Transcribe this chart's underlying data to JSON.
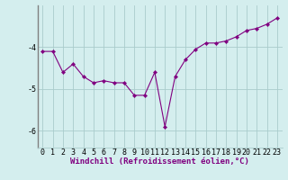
{
  "x": [
    0,
    1,
    2,
    3,
    4,
    5,
    6,
    7,
    8,
    9,
    10,
    11,
    12,
    13,
    14,
    15,
    16,
    17,
    18,
    19,
    20,
    21,
    22,
    23
  ],
  "y": [
    -4.1,
    -4.1,
    -4.6,
    -4.4,
    -4.7,
    -4.85,
    -4.8,
    -4.85,
    -4.85,
    -5.15,
    -5.15,
    -4.6,
    -5.9,
    -4.7,
    -4.3,
    -4.05,
    -3.9,
    -3.9,
    -3.85,
    -3.75,
    -3.6,
    -3.55,
    -3.45,
    -3.3
  ],
  "line_color": "#800080",
  "marker": "D",
  "marker_size": 2.2,
  "bg_color": "#d4eeee",
  "grid_color": "#aacccc",
  "xlabel": "Windchill (Refroidissement éolien,°C)",
  "xlabel_fontsize": 6.5,
  "tick_fontsize": 6.0,
  "ylim": [
    -6.4,
    -3.0
  ],
  "xlim": [
    -0.5,
    23.5
  ],
  "yticks": [
    -6,
    -5,
    -4
  ],
  "xticks": [
    0,
    1,
    2,
    3,
    4,
    5,
    6,
    7,
    8,
    9,
    10,
    11,
    12,
    13,
    14,
    15,
    16,
    17,
    18,
    19,
    20,
    21,
    22,
    23
  ],
  "left_spine_color": "#808080",
  "xlabel_color": "#800080",
  "xlabel_bold": true
}
